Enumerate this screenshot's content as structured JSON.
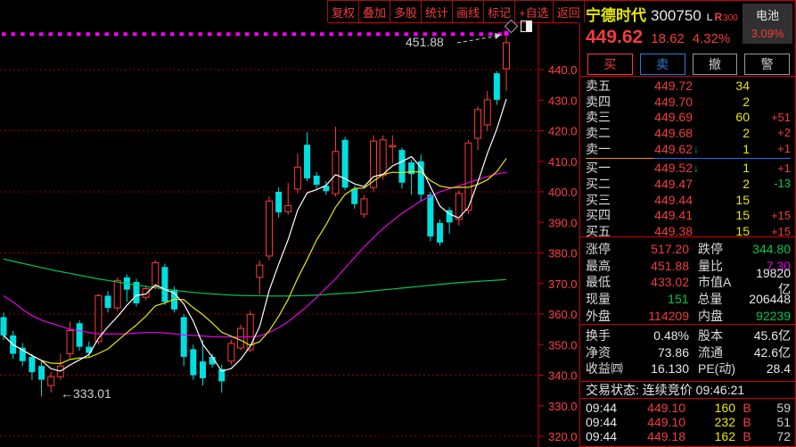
{
  "toolbar": {
    "buttons": [
      {
        "id": "adjust",
        "label": "复权"
      },
      {
        "id": "overlay",
        "label": "叠加"
      },
      {
        "id": "multi-stock",
        "label": "多股"
      },
      {
        "id": "statistics",
        "label": "统计"
      },
      {
        "id": "draw-line",
        "label": "画线"
      },
      {
        "id": "mark",
        "label": "标记"
      },
      {
        "id": "add-watchlist",
        "label": "+自选"
      },
      {
        "id": "back",
        "label": "返回"
      }
    ]
  },
  "header": {
    "stock_name": "宁德时代",
    "stock_code": "300750",
    "badge_l": "L",
    "badge_r": "R",
    "badge_index": "300",
    "last_price": "449.62",
    "change": "18.62",
    "change_pct": "4.32%",
    "sector_name": "电池",
    "sector_change": "3.09%",
    "trade_buttons": [
      {
        "id": "buy",
        "label": "买",
        "style": "red"
      },
      {
        "id": "sell",
        "label": "卖",
        "style": "blue"
      },
      {
        "id": "cancel",
        "label": "撤",
        "style": "gray"
      },
      {
        "id": "alert",
        "label": "警",
        "style": "gray"
      }
    ]
  },
  "order_book": {
    "asks": [
      {
        "label": "卖五",
        "price": "449.72",
        "vol": "34",
        "delta": "",
        "arrow": ""
      },
      {
        "label": "卖四",
        "price": "449.70",
        "vol": "2",
        "delta": "",
        "arrow": ""
      },
      {
        "label": "卖三",
        "price": "449.69",
        "vol": "60",
        "delta": "+51",
        "delta_color": "red",
        "arrow": ""
      },
      {
        "label": "卖二",
        "price": "449.68",
        "vol": "2",
        "delta": "+2",
        "delta_color": "red",
        "arrow": ""
      },
      {
        "label": "卖一",
        "price": "449.62",
        "vol": "1",
        "delta": "+1",
        "delta_color": "red",
        "arrow": "↓"
      }
    ],
    "bids": [
      {
        "label": "买一",
        "price": "449.52",
        "vol": "1",
        "delta": "+1",
        "delta_color": "red",
        "arrow": "↓"
      },
      {
        "label": "买二",
        "price": "449.47",
        "vol": "2",
        "delta": "-13",
        "delta_color": "green",
        "arrow": ""
      },
      {
        "label": "买三",
        "price": "449.44",
        "vol": "15",
        "delta": "",
        "arrow": ""
      },
      {
        "label": "买四",
        "price": "449.41",
        "vol": "15",
        "delta": "+15",
        "delta_color": "red",
        "arrow": ""
      },
      {
        "label": "买五",
        "price": "449.38",
        "vol": "15",
        "delta": "+15",
        "delta_color": "red",
        "arrow": ""
      }
    ]
  },
  "stats_block1": [
    {
      "l1": "涨停",
      "v1": "517.20",
      "c1": "red",
      "l2": "跌停",
      "v2": "344.80",
      "c2": "green"
    },
    {
      "l1": "最高",
      "v1": "451.88",
      "c1": "red",
      "l2": "量比",
      "v2": "7.30",
      "c2": "magenta"
    },
    {
      "l1": "最低",
      "v1": "433.02",
      "c1": "red",
      "l2": "市值A",
      "v2": "19820亿",
      "c2": "white"
    },
    {
      "l1": "现量",
      "v1": "151",
      "c1": "green",
      "l2": "总量",
      "v2": "206448",
      "c2": "white"
    },
    {
      "l1": "外盘",
      "v1": "114209",
      "c1": "red",
      "l2": "内盘",
      "v2": "92239",
      "c2": "green"
    }
  ],
  "stats_block2": [
    {
      "l1": "换手",
      "v1": "0.48%",
      "c1": "white",
      "l2": "股本",
      "v2": "45.6亿",
      "c2": "white"
    },
    {
      "l1": "净资",
      "v1": "73.86",
      "c1": "white",
      "l2": "流通",
      "v2": "42.6亿",
      "c2": "white"
    },
    {
      "l1": "收益㈣",
      "v1": "16.130",
      "c1": "white",
      "l2": "PE(动)",
      "v2": "28.4",
      "c2": "white"
    }
  ],
  "status_line": "交易状态: 连续竞价 09:46:21",
  "ticks": [
    {
      "time": "09:44",
      "price": "449.10",
      "vol": "160",
      "side": "B",
      "extra": "59"
    },
    {
      "time": "09:44",
      "price": "449.10",
      "vol": "232",
      "side": "B",
      "extra": "51"
    },
    {
      "time": "09:44",
      "price": "449.18",
      "vol": "162",
      "side": "B",
      "extra": "72"
    }
  ],
  "icons": {
    "corner": [
      "diamond-icon",
      "split-square-icon"
    ]
  },
  "chart_data": {
    "type": "candlestick",
    "title": "宁德时代 300750 日K",
    "y_axis": {
      "ticks": [
        440,
        430,
        420,
        410,
        400,
        390,
        380,
        370,
        360,
        350,
        340,
        330,
        320
      ],
      "tick_format": ".1f"
    },
    "gridline_prices": [
      440,
      420,
      400,
      380,
      360,
      340,
      320
    ],
    "dotted_highline_price": 451.6,
    "high_annotation": {
      "text": "451.88",
      "price": 451.88
    },
    "low_annotation": {
      "text": "←333.01",
      "price": 333.01
    },
    "legend": [
      "MA5-white",
      "MA10-yellow",
      "MA20-magenta",
      "MA60-green"
    ],
    "candles_ohlc": [
      [
        359,
        360.5,
        351.5,
        353
      ],
      [
        353,
        354.5,
        345.4,
        347
      ],
      [
        349,
        350.5,
        343,
        344.6
      ],
      [
        346,
        347,
        338.5,
        341
      ],
      [
        343,
        344.5,
        333.01,
        338.5
      ],
      [
        336.6,
        341,
        334.3,
        339.5
      ],
      [
        339.5,
        347,
        338.5,
        343
      ],
      [
        347,
        357.5,
        345.5,
        354.6
      ],
      [
        357,
        358,
        348,
        349.3
      ],
      [
        349.3,
        351,
        346,
        347.3
      ],
      [
        351,
        366.6,
        350,
        366
      ],
      [
        366,
        367.5,
        360.5,
        362
      ],
      [
        362,
        372,
        361,
        371
      ],
      [
        372,
        373,
        364,
        368
      ],
      [
        370.5,
        371.5,
        362.5,
        363.5
      ],
      [
        365.5,
        369.5,
        364.5,
        368.3
      ],
      [
        369,
        377.7,
        368,
        376.8
      ],
      [
        375.4,
        376.5,
        363,
        364
      ],
      [
        368,
        369,
        360.5,
        361.5
      ],
      [
        359,
        360,
        343,
        346
      ],
      [
        348.5,
        350,
        338.5,
        340
      ],
      [
        344.5,
        351.5,
        336.6,
        339
      ],
      [
        346,
        347,
        342.5,
        343.5
      ],
      [
        342,
        343.5,
        334.3,
        338
      ],
      [
        344.6,
        351.5,
        343.5,
        350.4
      ],
      [
        348.9,
        356.5,
        348,
        355.3
      ],
      [
        348.3,
        361,
        347.5,
        359.9
      ],
      [
        372,
        377.5,
        366.4,
        376
      ],
      [
        379,
        398.5,
        377.5,
        397
      ],
      [
        400,
        401.5,
        391.5,
        393.3
      ],
      [
        393.5,
        402.9,
        392.5,
        395.5
      ],
      [
        400.9,
        412.5,
        399.5,
        408.1
      ],
      [
        415.4,
        419.5,
        403.5,
        404.4
      ],
      [
        405.3,
        406.5,
        401,
        402.3
      ],
      [
        402,
        403.5,
        399,
        400.2
      ],
      [
        399.4,
        421.3,
        398.5,
        413.2
      ],
      [
        417,
        418,
        400.5,
        401.4
      ],
      [
        401,
        402,
        394.5,
        396
      ],
      [
        392.7,
        399,
        391.5,
        397.7
      ],
      [
        401.4,
        418.5,
        400,
        416.6
      ],
      [
        405.3,
        418.5,
        404,
        417
      ],
      [
        414.8,
        418.5,
        409.3,
        415.2
      ],
      [
        413.7,
        414.5,
        401,
        403
      ],
      [
        409.6,
        410.5,
        399,
        405.8
      ],
      [
        410,
        412.2,
        397,
        399.1
      ],
      [
        399.1,
        400,
        383.9,
        385.4
      ],
      [
        389.8,
        391,
        382.5,
        383.4
      ],
      [
        394,
        395,
        386.3,
        390
      ],
      [
        391,
        400.5,
        389,
        399.5
      ],
      [
        394,
        417,
        392.7,
        416
      ],
      [
        417.5,
        428,
        413.7,
        426.9
      ],
      [
        421.9,
        433,
        420,
        430.1
      ],
      [
        438.8,
        439.5,
        428.5,
        430.1
      ],
      [
        440.3,
        451.88,
        433.02,
        448.8
      ]
    ],
    "ma_magenta": [
      366,
      364,
      361.5,
      359.5,
      358,
      357,
      356,
      355,
      354.5,
      354,
      353.5,
      353.5,
      353.5,
      353.5,
      353.8,
      354,
      354,
      353.8,
      353.5,
      353.2,
      353,
      352.8,
      352.6,
      352.5,
      352.5,
      352.5,
      352.6,
      352.8,
      354,
      355.5,
      357.5,
      360,
      362.5,
      365.5,
      368.5,
      371.5,
      375,
      378.5,
      382,
      385,
      388,
      390.5,
      393,
      395,
      397,
      398.5,
      400,
      401,
      402,
      403,
      404,
      405,
      405.8,
      406.4
    ],
    "ma_green": [
      378,
      377.3,
      376.6,
      375.9,
      375.2,
      374.5,
      373.9,
      373.3,
      372.7,
      372.1,
      371.5,
      371,
      370.5,
      370,
      369.5,
      369,
      368.6,
      368.2,
      367.8,
      367.4,
      367.1,
      366.8,
      366.6,
      366.4,
      366.2,
      366.1,
      366,
      366,
      365.9,
      365.9,
      365.9,
      366,
      366.1,
      366.2,
      366.4,
      366.6,
      366.8,
      367,
      367.3,
      367.6,
      367.9,
      368.2,
      368.5,
      368.8,
      369.1,
      369.4,
      369.7,
      370,
      370.3,
      370.5,
      370.7,
      370.9,
      371.1,
      371.3
    ],
    "ma_white_window": 5,
    "ma_yellow_window": 10,
    "colors": {
      "up": "#ff3b3b",
      "down": "#00dfe0",
      "ma_white": "#ffffff",
      "ma_yellow": "#e8e800",
      "ma_magenta": "#e800e8",
      "ma_green": "#00c850",
      "grid": "#c40000",
      "axis_label": "#ff4040",
      "annotation": "#cfcfcf",
      "dotted_line": "#ff00ff"
    }
  }
}
